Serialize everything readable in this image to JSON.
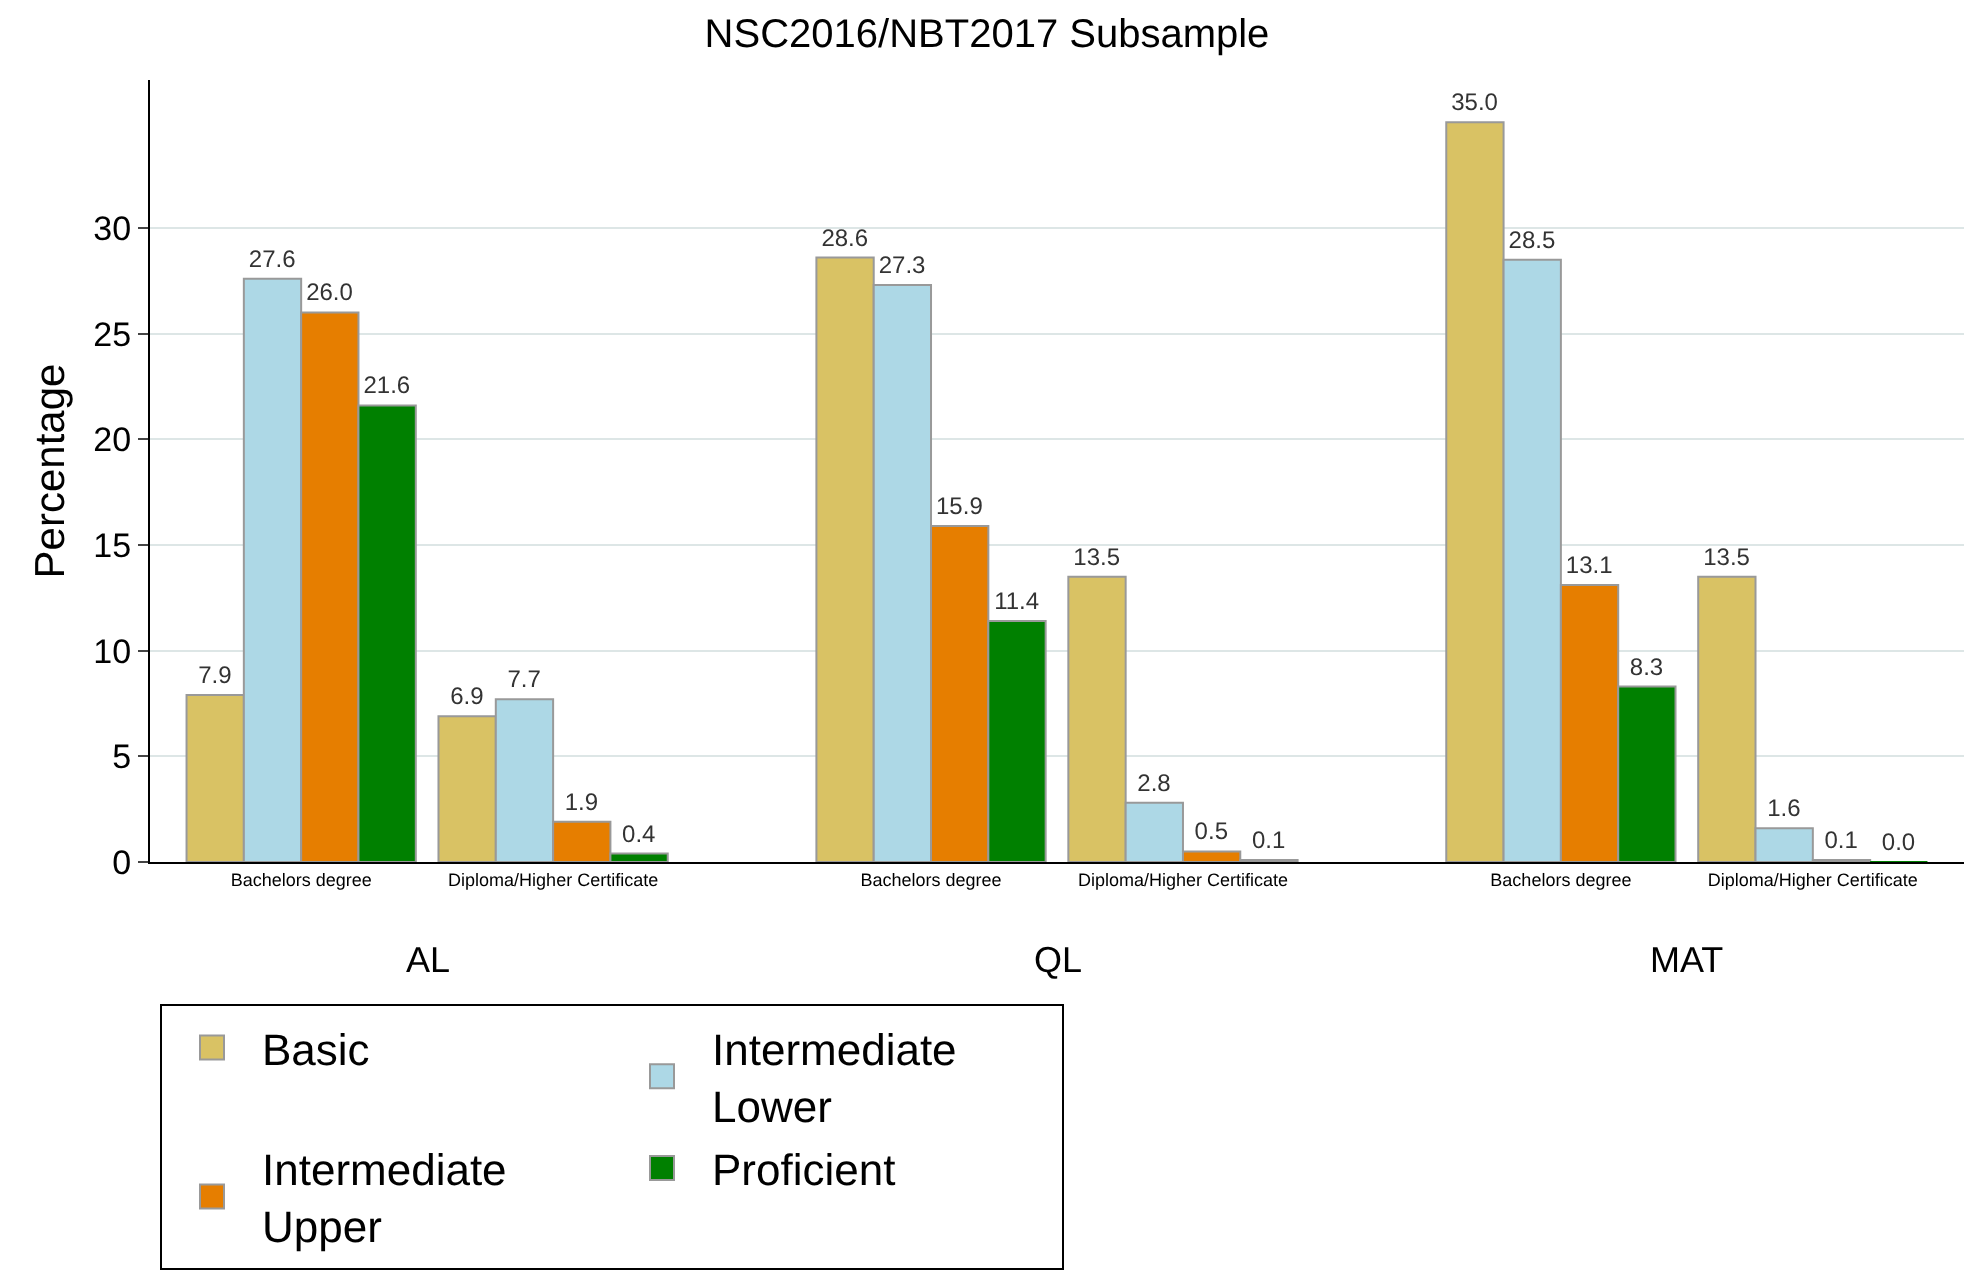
{
  "chart_data": {
    "type": "bar",
    "title": "NSC2016/NBT2017 Subsample",
    "ylabel": "Percentage",
    "categories": [
      "Bachelors degree",
      "Diploma/Higher Certificate",
      "Bachelors degree",
      "Diploma/Higher Certificate",
      "Bachelors degree",
      "Diploma/Higher Certificate"
    ],
    "annotations": [
      "AL",
      "QL",
      "MAT"
    ],
    "series": [
      {
        "name": "Basic",
        "color": "#d9c264",
        "values": [
          7.9,
          6.9,
          28.6,
          13.5,
          35.0,
          13.5
        ],
        "value_labels": [
          "7.9",
          "6.9",
          "28.6",
          "13.5",
          "35.0",
          "13.5"
        ]
      },
      {
        "name": "Intermediate Lower",
        "color": "#add8e6",
        "values": [
          27.6,
          7.7,
          27.3,
          2.8,
          28.5,
          1.6
        ],
        "value_labels": [
          "27.6",
          "7.7",
          "27.3",
          "2.8",
          "28.5",
          "1.6"
        ]
      },
      {
        "name": "Intermediate Upper",
        "color": "#e67e00",
        "values": [
          26.0,
          1.9,
          15.9,
          0.5,
          13.1,
          0.1
        ],
        "value_labels": [
          "26.0",
          "1.9",
          "15.9",
          "0.5",
          "13.1",
          "0.1"
        ]
      },
      {
        "name": "Proficient",
        "color": "#008000",
        "values": [
          21.6,
          0.4,
          11.4,
          0.1,
          8.3,
          0.0
        ],
        "value_labels": [
          "21.6",
          "0.4",
          "11.4",
          "0.1",
          "8.3",
          "0.0"
        ]
      }
    ],
    "ylim": [
      0,
      37
    ],
    "yticks": [
      0,
      5,
      10,
      15,
      20,
      25,
      30
    ],
    "grid": "y",
    "legend": "bottom"
  }
}
